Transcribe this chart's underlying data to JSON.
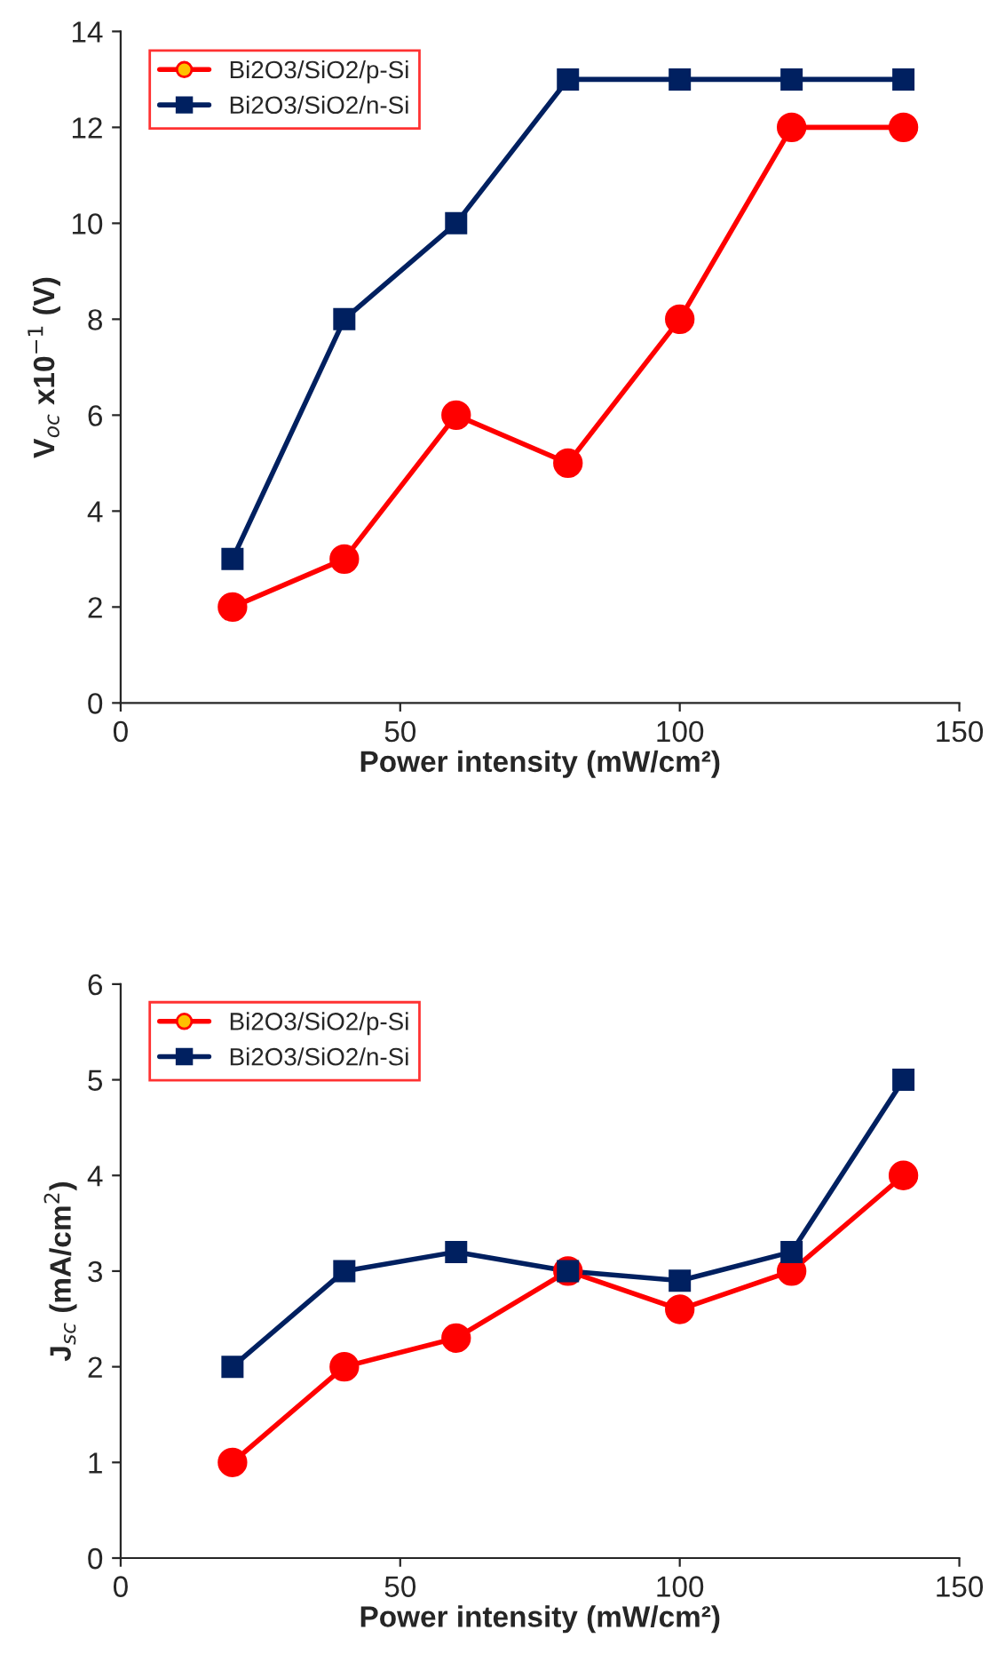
{
  "chart_data": [
    {
      "type": "line",
      "xlabel": "Power intensity (mW/cm²)",
      "ylabel": "V$_{oc}$ x10$^{−1}$ (V)",
      "x": [
        20,
        40,
        60,
        80,
        100,
        120,
        140
      ],
      "xlim": [
        0,
        150
      ],
      "xticks": [
        0,
        50,
        100,
        150
      ],
      "ylim": [
        0,
        14
      ],
      "yticks": [
        0,
        2,
        4,
        6,
        8,
        10,
        12,
        14
      ],
      "grid": false,
      "legend": "top left",
      "series": [
        {
          "name": "Bi2O3/SiO2/p-Si",
          "color": "#ff0000",
          "marker": "circle",
          "values": [
            2,
            3,
            6,
            5,
            8,
            12,
            12
          ]
        },
        {
          "name": "Bi2O3/SiO2/n-Si",
          "color": "#002060",
          "marker": "square",
          "values": [
            3,
            8,
            10,
            13,
            13,
            13,
            13
          ]
        }
      ]
    },
    {
      "type": "line",
      "xlabel": "Power intensity (mW/cm²)",
      "ylabel": "J$_{sc}$ (mA/cm$^{2}$)",
      "x": [
        20,
        40,
        60,
        80,
        100,
        120,
        140
      ],
      "xlim": [
        0,
        150
      ],
      "xticks": [
        0,
        50,
        100,
        150
      ],
      "ylim": [
        0,
        6
      ],
      "yticks": [
        0,
        1,
        2,
        3,
        4,
        5,
        6
      ],
      "grid": false,
      "legend": "top left",
      "series": [
        {
          "name": "Bi2O3/SiO2/p-Si",
          "color": "#ff0000",
          "marker": "circle",
          "values": [
            1,
            2,
            2.3,
            3,
            2.6,
            3,
            4
          ]
        },
        {
          "name": "Bi2O3/SiO2/n-Si",
          "color": "#002060",
          "marker": "square",
          "values": [
            2,
            3,
            3.2,
            3,
            2.9,
            3.2,
            5
          ]
        }
      ]
    }
  ]
}
